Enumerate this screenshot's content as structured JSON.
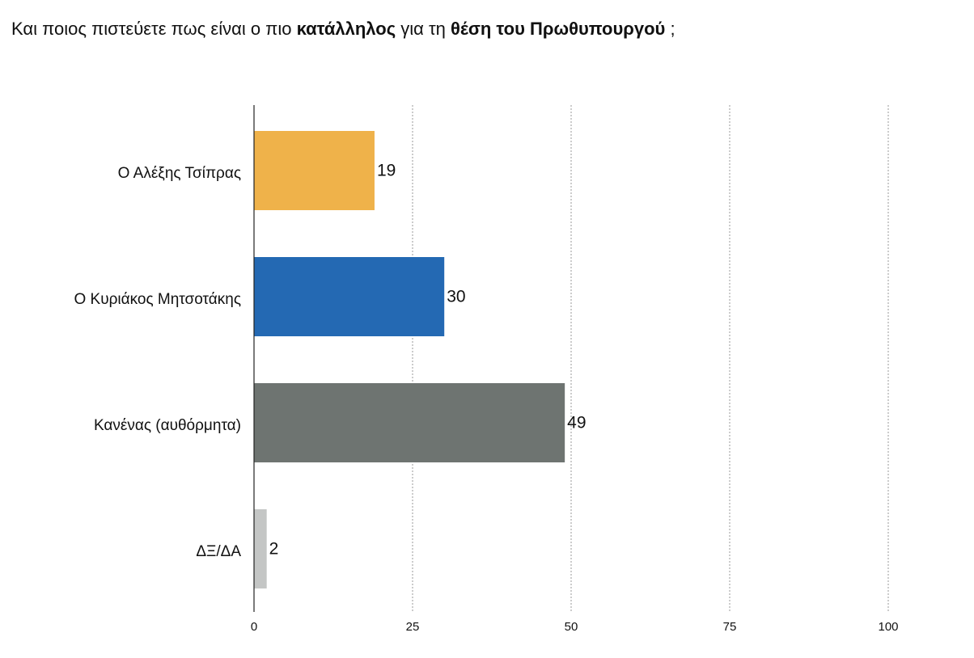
{
  "chart_data": {
    "type": "hbar",
    "title": [
      "Και ποιος πιστεύετε πως είναι ο πιο ",
      "κατάλληλος",
      " για τη ",
      "θέση του Πρωθυπουργού",
      " ;"
    ],
    "categories": [
      "Ο Αλέξης Τσίπρας",
      "Ο Κυριάκος Μητσοτάκης",
      "Κανένας (αυθόρμητα)",
      "ΔΞ/ΔΑ"
    ],
    "values": [
      19,
      30,
      49,
      2
    ],
    "colors": [
      "#efb24a",
      "#2469b3",
      "#6e7471",
      "#c4c6c5"
    ],
    "xlim": [
      0,
      100
    ],
    "xticks": [
      0,
      25,
      50,
      75,
      100
    ],
    "grid": true
  }
}
